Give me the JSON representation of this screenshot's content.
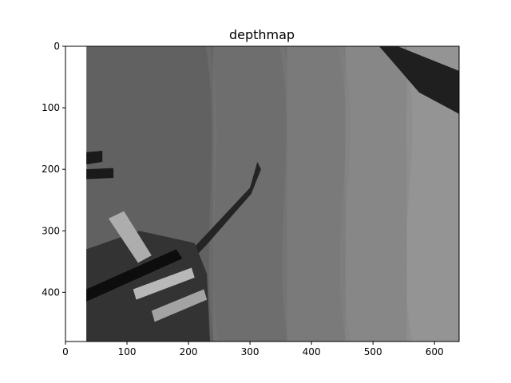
{
  "chart_data": {
    "type": "heatmap",
    "title": "depthmap",
    "xlabel": "",
    "ylabel": "",
    "xlim": [
      0,
      640
    ],
    "ylim": [
      480,
      0
    ],
    "x_ticks": [
      0,
      100,
      200,
      300,
      400,
      500,
      600
    ],
    "y_ticks": [
      0,
      100,
      200,
      300,
      400
    ],
    "image_extent": {
      "x": [
        34,
        640
      ],
      "y": [
        0,
        480
      ]
    },
    "colormap": "gray",
    "grid": false,
    "depth_field": {
      "background_gray_left": 0.38,
      "background_gray_right": 0.58,
      "contour_band_x_centers": [
        240,
        360,
        455,
        555
      ],
      "contour_band_step": 0.025
    },
    "features": [
      {
        "name": "upper-right diagonal wall",
        "gray": 0.12,
        "points": [
          [
            510,
            0
          ],
          [
            540,
            0
          ],
          [
            640,
            40
          ],
          [
            640,
            110
          ],
          [
            575,
            75
          ],
          [
            510,
            0
          ]
        ]
      },
      {
        "name": "thin pole",
        "gray": 0.14,
        "points": [
          [
            150,
            390
          ],
          [
            225,
            310
          ],
          [
            300,
            230
          ],
          [
            312,
            188
          ],
          [
            318,
            200
          ],
          [
            302,
            240
          ],
          [
            232,
            320
          ],
          [
            158,
            398
          ]
        ]
      },
      {
        "name": "left dark block top",
        "gray": 0.1,
        "points": [
          [
            34,
            172
          ],
          [
            60,
            170
          ],
          [
            60,
            188
          ],
          [
            34,
            192
          ]
        ]
      },
      {
        "name": "left dark block middle",
        "gray": 0.1,
        "points": [
          [
            34,
            200
          ],
          [
            78,
            198
          ],
          [
            78,
            214
          ],
          [
            34,
            216
          ]
        ]
      },
      {
        "name": "lower-left clutter",
        "gray": 0.2,
        "points": [
          [
            34,
            330
          ],
          [
            120,
            300
          ],
          [
            210,
            320
          ],
          [
            230,
            370
          ],
          [
            235,
            480
          ],
          [
            34,
            480
          ]
        ]
      },
      {
        "name": "light slab 1",
        "gray": 0.68,
        "points": [
          [
            70,
            280
          ],
          [
            95,
            268
          ],
          [
            140,
            340
          ],
          [
            118,
            352
          ]
        ]
      },
      {
        "name": "light slab 2",
        "gray": 0.72,
        "points": [
          [
            110,
            395
          ],
          [
            205,
            360
          ],
          [
            210,
            376
          ],
          [
            115,
            412
          ]
        ]
      },
      {
        "name": "light slab 3",
        "gray": 0.64,
        "points": [
          [
            140,
            430
          ],
          [
            225,
            395
          ],
          [
            230,
            412
          ],
          [
            145,
            448
          ]
        ]
      },
      {
        "name": "dark streak",
        "gray": 0.05,
        "points": [
          [
            34,
            395
          ],
          [
            180,
            330
          ],
          [
            190,
            345
          ],
          [
            34,
            415
          ]
        ]
      }
    ]
  }
}
